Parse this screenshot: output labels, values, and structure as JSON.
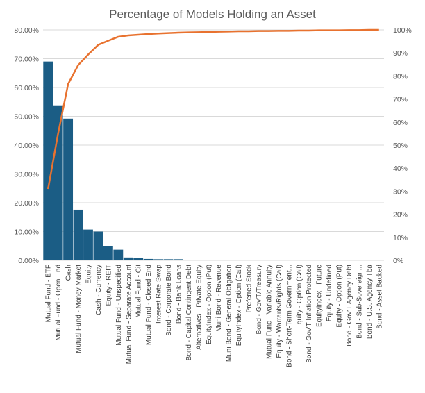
{
  "chart_data": {
    "type": "bar",
    "title": "Percentage of Models Holding an Asset",
    "xlabel": "",
    "ylabel": "",
    "y2label": "",
    "ylim": [
      0,
      0.8
    ],
    "y2lim": [
      0,
      1
    ],
    "y_ticks": [
      "0.00%",
      "10.00%",
      "20.00%",
      "30.00%",
      "40.00%",
      "50.00%",
      "60.00%",
      "70.00%",
      "80.00%"
    ],
    "y2_ticks": [
      "0%",
      "10%",
      "20%",
      "30%",
      "40%",
      "50%",
      "60%",
      "70%",
      "80%",
      "90%",
      "100%"
    ],
    "grid": true,
    "legend": "none",
    "colors": {
      "bar": "#1b5d85",
      "line": "#e8722f",
      "grid": "#d9d9d9",
      "text": "#595959"
    },
    "categories": [
      "Mutual Fund - ETF",
      "Mutual Fund - Open End",
      "Cash",
      "Mutual Fund - Money Market",
      "Equity",
      "Cash - Currency",
      "Equity - REIT",
      "Mutual Fund - Unspecified",
      "Mutual Fund - Separate Account",
      "Mutual Fund - Cit",
      "Mutual Fund - Closed End",
      "Interest Rate Swap",
      "Bond - Corporate Bond",
      "Bond - Bank Loans",
      "Bond - Capital Contingent Debt",
      "Alternatives - Private Equity",
      "EquityIndex - Option (Put)",
      "Muni Bond - Revenue",
      "Muni Bond - General Obligation",
      "EquityIndex - Option (Call)",
      "Preferred Stock",
      "Bond - Gov'T/Treasury",
      "Mutual Fund - Variable Annuity",
      "Equity - Warrants/Rights (Call)",
      "Bond - Short-Term Government...",
      "Equity - Option (Call)",
      "Bond - Gov'T Inflation Protected",
      "EquityIndex - Future",
      "Equity - Undefined",
      "Equity - Option (Put)",
      "Bond - Gov'T Agency Debt",
      "Bond - Sub-Sovereign...",
      "Bond - U.S. Agency Tba",
      "Bond - Asset Backed"
    ],
    "series": [
      {
        "type": "bar",
        "axis": "primary",
        "values": [
          0.69,
          0.538,
          0.492,
          0.176,
          0.107,
          0.1,
          0.05,
          0.037,
          0.01,
          0.009,
          0.005,
          0.004,
          0.004,
          0.004,
          0.002,
          0.002,
          0.002,
          0.002,
          0.002,
          0.001,
          0.001,
          0.001,
          0.001,
          0.001,
          0.001,
          0.001,
          0.001,
          0.001,
          0.001,
          0.001,
          0.001,
          0.001,
          0.001,
          0.001
        ]
      },
      {
        "type": "line",
        "axis": "secondary",
        "values": [
          0.31,
          0.55,
          0.765,
          0.847,
          0.893,
          0.935,
          0.953,
          0.97,
          0.976,
          0.979,
          0.982,
          0.984,
          0.986,
          0.988,
          0.989,
          0.99,
          0.991,
          0.992,
          0.993,
          0.994,
          0.994,
          0.995,
          0.995,
          0.996,
          0.996,
          0.997,
          0.997,
          0.998,
          0.998,
          0.998,
          0.999,
          0.999,
          1.0,
          1.0
        ]
      }
    ]
  }
}
